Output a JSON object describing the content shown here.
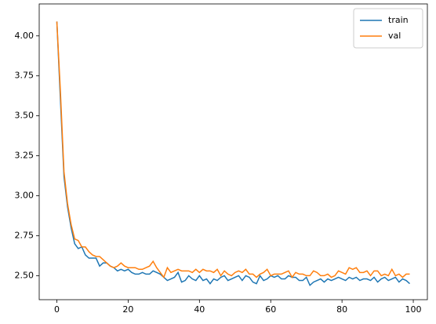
{
  "chart_data": {
    "type": "line",
    "x": [
      0,
      1,
      2,
      3,
      4,
      5,
      6,
      7,
      8,
      9,
      10,
      11,
      12,
      13,
      14,
      15,
      16,
      17,
      18,
      19,
      20,
      21,
      22,
      23,
      24,
      25,
      26,
      27,
      28,
      29,
      30,
      31,
      32,
      33,
      34,
      35,
      36,
      37,
      38,
      39,
      40,
      41,
      42,
      43,
      44,
      45,
      46,
      47,
      48,
      49,
      50,
      51,
      52,
      53,
      54,
      55,
      56,
      57,
      58,
      59,
      60,
      61,
      62,
      63,
      64,
      65,
      66,
      67,
      68,
      69,
      70,
      71,
      72,
      73,
      74,
      75,
      76,
      77,
      78,
      79,
      80,
      81,
      82,
      83,
      84,
      85,
      86,
      87,
      88,
      89,
      90,
      91,
      92,
      93,
      94,
      95,
      96,
      97,
      98,
      99
    ],
    "series": [
      {
        "name": "train",
        "color": "#1f77b4",
        "values": [
          4.09,
          3.6,
          3.12,
          2.93,
          2.8,
          2.7,
          2.67,
          2.68,
          2.63,
          2.61,
          2.61,
          2.61,
          2.56,
          2.58,
          2.58,
          2.56,
          2.55,
          2.53,
          2.54,
          2.53,
          2.54,
          2.52,
          2.51,
          2.51,
          2.52,
          2.51,
          2.51,
          2.53,
          2.52,
          2.51,
          2.49,
          2.47,
          2.48,
          2.49,
          2.52,
          2.46,
          2.47,
          2.5,
          2.48,
          2.47,
          2.5,
          2.47,
          2.48,
          2.45,
          2.48,
          2.47,
          2.49,
          2.5,
          2.47,
          2.48,
          2.49,
          2.5,
          2.47,
          2.5,
          2.49,
          2.46,
          2.45,
          2.5,
          2.47,
          2.48,
          2.5,
          2.49,
          2.5,
          2.48,
          2.48,
          2.5,
          2.49,
          2.49,
          2.47,
          2.47,
          2.49,
          2.44,
          2.46,
          2.47,
          2.48,
          2.46,
          2.48,
          2.47,
          2.48,
          2.49,
          2.48,
          2.47,
          2.49,
          2.48,
          2.49,
          2.47,
          2.48,
          2.48,
          2.47,
          2.49,
          2.46,
          2.48,
          2.49,
          2.47,
          2.48,
          2.49,
          2.46,
          2.48,
          2.47,
          2.45
        ]
      },
      {
        "name": "val",
        "color": "#ff7f0e",
        "values": [
          4.09,
          3.65,
          3.15,
          2.95,
          2.82,
          2.73,
          2.72,
          2.68,
          2.68,
          2.65,
          2.63,
          2.62,
          2.62,
          2.6,
          2.58,
          2.56,
          2.55,
          2.56,
          2.58,
          2.56,
          2.55,
          2.55,
          2.55,
          2.54,
          2.54,
          2.55,
          2.56,
          2.59,
          2.55,
          2.52,
          2.49,
          2.55,
          2.52,
          2.53,
          2.54,
          2.53,
          2.53,
          2.53,
          2.52,
          2.54,
          2.52,
          2.54,
          2.53,
          2.53,
          2.52,
          2.54,
          2.5,
          2.53,
          2.51,
          2.5,
          2.52,
          2.53,
          2.52,
          2.54,
          2.51,
          2.51,
          2.49,
          2.51,
          2.52,
          2.54,
          2.5,
          2.51,
          2.51,
          2.51,
          2.52,
          2.53,
          2.49,
          2.52,
          2.51,
          2.51,
          2.5,
          2.5,
          2.53,
          2.52,
          2.5,
          2.5,
          2.51,
          2.49,
          2.5,
          2.53,
          2.52,
          2.51,
          2.55,
          2.54,
          2.55,
          2.52,
          2.52,
          2.53,
          2.5,
          2.53,
          2.53,
          2.5,
          2.51,
          2.5,
          2.54,
          2.5,
          2.51,
          2.49,
          2.51,
          2.51
        ]
      }
    ],
    "xlim": [
      -4.95,
      103.95
    ],
    "xticks": [
      0,
      20,
      40,
      60,
      80,
      100
    ],
    "ylim": [
      2.35,
      4.2
    ],
    "yticks": [
      {
        "value": 2.5,
        "label": "2.50"
      },
      {
        "value": 2.75,
        "label": "2.75"
      },
      {
        "value": 3,
        "label": "3.00"
      },
      {
        "value": 3.25,
        "label": "3.25"
      },
      {
        "value": 3.5,
        "label": "3.50"
      },
      {
        "value": 3.75,
        "label": "3.75"
      },
      {
        "value": 4,
        "label": "4.00"
      }
    ],
    "legend": "upper right"
  }
}
